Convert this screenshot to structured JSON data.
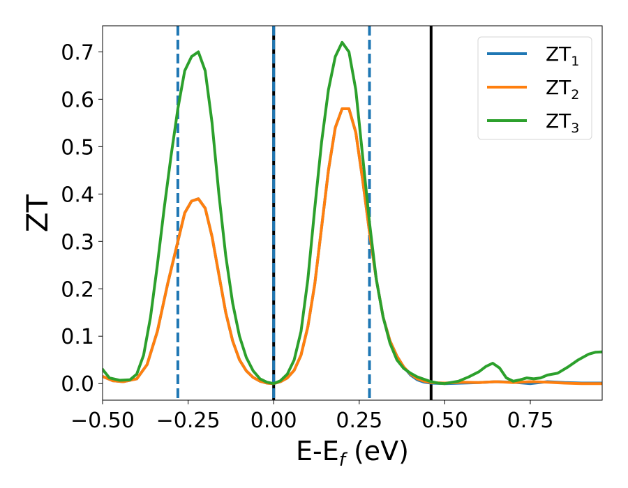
{
  "chart_data": {
    "type": "line",
    "xlabel_parts": {
      "base": "E-E",
      "sub": "f",
      "tail": " (eV)"
    },
    "ylabel": "ZT",
    "xlim": [
      -0.5,
      0.96
    ],
    "ylim": [
      -0.035,
      0.755
    ],
    "xticks": [
      -0.5,
      -0.25,
      0.0,
      0.25,
      0.5,
      0.75
    ],
    "xtick_labels": [
      "−0.50",
      "−0.25",
      "0.00",
      "0.25",
      "0.50",
      "0.75"
    ],
    "yticks": [
      0.0,
      0.1,
      0.2,
      0.3,
      0.4,
      0.5,
      0.6,
      0.7
    ],
    "ytick_labels": [
      "0.0",
      "0.1",
      "0.2",
      "0.3",
      "0.4",
      "0.5",
      "0.6",
      "0.7"
    ],
    "grid": false,
    "legend_position": "top-right",
    "vertical_lines": [
      {
        "x": -0.28,
        "style": "dashed",
        "color": "#1f77b4"
      },
      {
        "x": 0.0,
        "style": "solid",
        "color": "#000000"
      },
      {
        "x": 0.0,
        "style": "dashed",
        "color": "#1f77b4"
      },
      {
        "x": 0.28,
        "style": "dashed",
        "color": "#1f77b4"
      },
      {
        "x": 0.46,
        "style": "solid",
        "color": "#000000"
      }
    ],
    "series": [
      {
        "name": "ZT",
        "name_sub": "1",
        "color": "#1f77b4",
        "points": [
          [
            -0.5,
            0.015
          ],
          [
            -0.47,
            0.006
          ],
          [
            -0.44,
            0.004
          ],
          [
            -0.4,
            0.01
          ],
          [
            -0.37,
            0.04
          ],
          [
            -0.34,
            0.11
          ],
          [
            -0.31,
            0.21
          ],
          [
            -0.28,
            0.3
          ],
          [
            -0.26,
            0.36
          ],
          [
            -0.24,
            0.385
          ],
          [
            -0.22,
            0.39
          ],
          [
            -0.2,
            0.37
          ],
          [
            -0.18,
            0.31
          ],
          [
            -0.16,
            0.23
          ],
          [
            -0.14,
            0.15
          ],
          [
            -0.12,
            0.09
          ],
          [
            -0.1,
            0.05
          ],
          [
            -0.08,
            0.027
          ],
          [
            -0.06,
            0.013
          ],
          [
            -0.04,
            0.005
          ],
          [
            -0.02,
            0.001
          ],
          [
            0.0,
            0.0
          ],
          [
            0.02,
            0.004
          ],
          [
            0.04,
            0.012
          ],
          [
            0.06,
            0.028
          ],
          [
            0.08,
            0.06
          ],
          [
            0.1,
            0.12
          ],
          [
            0.12,
            0.21
          ],
          [
            0.14,
            0.33
          ],
          [
            0.16,
            0.45
          ],
          [
            0.18,
            0.54
          ],
          [
            0.2,
            0.58
          ],
          [
            0.22,
            0.58
          ],
          [
            0.24,
            0.53
          ],
          [
            0.26,
            0.43
          ],
          [
            0.28,
            0.32
          ],
          [
            0.3,
            0.22
          ],
          [
            0.32,
            0.14
          ],
          [
            0.34,
            0.09
          ],
          [
            0.36,
            0.058
          ],
          [
            0.38,
            0.035
          ],
          [
            0.4,
            0.018
          ],
          [
            0.42,
            0.008
          ],
          [
            0.44,
            0.003
          ],
          [
            0.46,
            0.001
          ],
          [
            0.5,
            0.0
          ],
          [
            0.55,
            0.001
          ],
          [
            0.6,
            0.002
          ],
          [
            0.65,
            0.004
          ],
          [
            0.7,
            0.003
          ],
          [
            0.75,
            0.0
          ],
          [
            0.8,
            0.004
          ],
          [
            0.85,
            0.002
          ],
          [
            0.9,
            0.001
          ],
          [
            0.96,
            0.001
          ]
        ]
      },
      {
        "name": "ZT",
        "name_sub": "2",
        "color": "#ff7f0e",
        "points": [
          [
            -0.5,
            0.015
          ],
          [
            -0.47,
            0.006
          ],
          [
            -0.44,
            0.004
          ],
          [
            -0.4,
            0.01
          ],
          [
            -0.37,
            0.04
          ],
          [
            -0.34,
            0.11
          ],
          [
            -0.31,
            0.21
          ],
          [
            -0.28,
            0.3
          ],
          [
            -0.26,
            0.36
          ],
          [
            -0.24,
            0.385
          ],
          [
            -0.22,
            0.39
          ],
          [
            -0.2,
            0.37
          ],
          [
            -0.18,
            0.31
          ],
          [
            -0.16,
            0.23
          ],
          [
            -0.14,
            0.15
          ],
          [
            -0.12,
            0.09
          ],
          [
            -0.1,
            0.05
          ],
          [
            -0.08,
            0.027
          ],
          [
            -0.06,
            0.013
          ],
          [
            -0.04,
            0.005
          ],
          [
            -0.02,
            0.001
          ],
          [
            0.0,
            0.0
          ],
          [
            0.02,
            0.004
          ],
          [
            0.04,
            0.012
          ],
          [
            0.06,
            0.028
          ],
          [
            0.08,
            0.06
          ],
          [
            0.1,
            0.12
          ],
          [
            0.12,
            0.21
          ],
          [
            0.14,
            0.33
          ],
          [
            0.16,
            0.45
          ],
          [
            0.18,
            0.54
          ],
          [
            0.2,
            0.58
          ],
          [
            0.22,
            0.58
          ],
          [
            0.24,
            0.53
          ],
          [
            0.26,
            0.43
          ],
          [
            0.28,
            0.32
          ],
          [
            0.3,
            0.22
          ],
          [
            0.32,
            0.14
          ],
          [
            0.34,
            0.09
          ],
          [
            0.36,
            0.058
          ],
          [
            0.38,
            0.035
          ],
          [
            0.4,
            0.02
          ],
          [
            0.42,
            0.01
          ],
          [
            0.44,
            0.005
          ],
          [
            0.46,
            0.002
          ],
          [
            0.5,
            0.001
          ],
          [
            0.55,
            0.003
          ],
          [
            0.6,
            0.002
          ],
          [
            0.65,
            0.004
          ],
          [
            0.7,
            0.002
          ],
          [
            0.75,
            0.004
          ],
          [
            0.8,
            0.003
          ],
          [
            0.85,
            0.001
          ],
          [
            0.9,
            0.0
          ],
          [
            0.96,
            0.0
          ]
        ]
      },
      {
        "name": "ZT",
        "name_sub": "3",
        "color": "#2ca02c",
        "points": [
          [
            -0.5,
            0.03
          ],
          [
            -0.48,
            0.012
          ],
          [
            -0.45,
            0.007
          ],
          [
            -0.42,
            0.008
          ],
          [
            -0.4,
            0.02
          ],
          [
            -0.38,
            0.06
          ],
          [
            -0.36,
            0.14
          ],
          [
            -0.34,
            0.25
          ],
          [
            -0.32,
            0.37
          ],
          [
            -0.3,
            0.48
          ],
          [
            -0.28,
            0.58
          ],
          [
            -0.26,
            0.66
          ],
          [
            -0.24,
            0.69
          ],
          [
            -0.22,
            0.7
          ],
          [
            -0.2,
            0.66
          ],
          [
            -0.18,
            0.55
          ],
          [
            -0.16,
            0.4
          ],
          [
            -0.14,
            0.27
          ],
          [
            -0.12,
            0.17
          ],
          [
            -0.1,
            0.1
          ],
          [
            -0.08,
            0.055
          ],
          [
            -0.06,
            0.027
          ],
          [
            -0.04,
            0.01
          ],
          [
            -0.02,
            0.003
          ],
          [
            0.0,
            0.0
          ],
          [
            0.02,
            0.006
          ],
          [
            0.04,
            0.02
          ],
          [
            0.06,
            0.05
          ],
          [
            0.08,
            0.11
          ],
          [
            0.1,
            0.22
          ],
          [
            0.12,
            0.37
          ],
          [
            0.14,
            0.51
          ],
          [
            0.16,
            0.62
          ],
          [
            0.18,
            0.69
          ],
          [
            0.2,
            0.72
          ],
          [
            0.22,
            0.7
          ],
          [
            0.24,
            0.62
          ],
          [
            0.26,
            0.48
          ],
          [
            0.28,
            0.34
          ],
          [
            0.3,
            0.22
          ],
          [
            0.32,
            0.14
          ],
          [
            0.34,
            0.085
          ],
          [
            0.36,
            0.05
          ],
          [
            0.38,
            0.032
          ],
          [
            0.4,
            0.022
          ],
          [
            0.42,
            0.014
          ],
          [
            0.44,
            0.009
          ],
          [
            0.46,
            0.004
          ],
          [
            0.48,
            0.001
          ],
          [
            0.5,
            0.0
          ],
          [
            0.54,
            0.005
          ],
          [
            0.57,
            0.014
          ],
          [
            0.6,
            0.025
          ],
          [
            0.62,
            0.036
          ],
          [
            0.64,
            0.043
          ],
          [
            0.66,
            0.033
          ],
          [
            0.68,
            0.012
          ],
          [
            0.7,
            0.005
          ],
          [
            0.72,
            0.008
          ],
          [
            0.74,
            0.012
          ],
          [
            0.76,
            0.01
          ],
          [
            0.78,
            0.012
          ],
          [
            0.8,
            0.018
          ],
          [
            0.83,
            0.022
          ],
          [
            0.86,
            0.035
          ],
          [
            0.89,
            0.05
          ],
          [
            0.92,
            0.062
          ],
          [
            0.94,
            0.066
          ],
          [
            0.96,
            0.067
          ]
        ]
      }
    ]
  }
}
